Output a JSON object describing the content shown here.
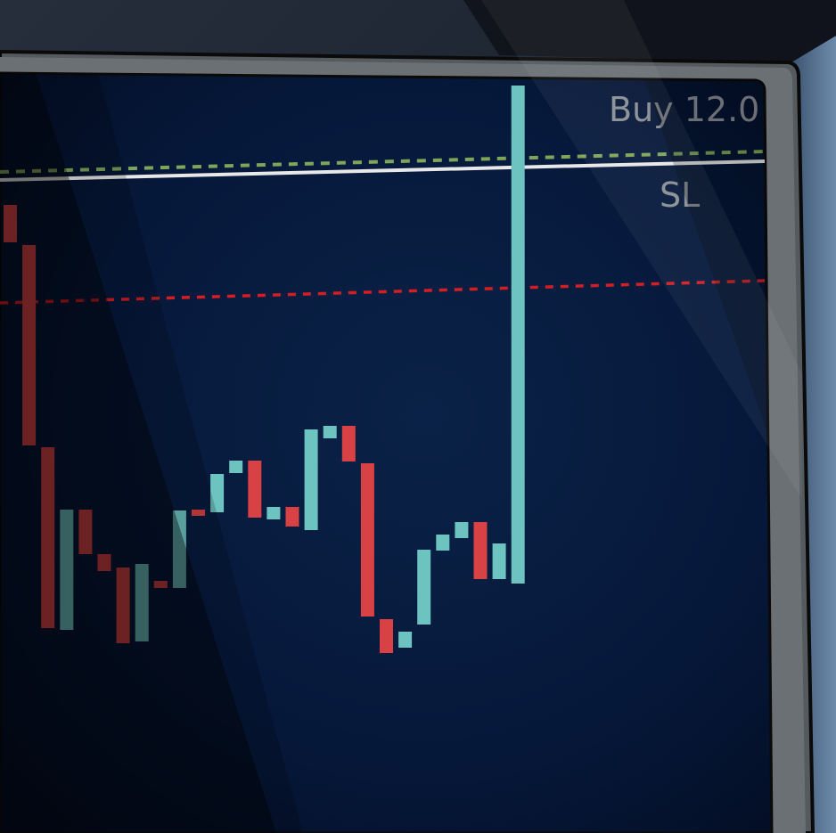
{
  "chart_data": {
    "type": "candlestick",
    "annotations": [
      {
        "text": "Buy 12.0",
        "kind": "entry-line",
        "color": "#7ea65a"
      },
      {
        "text": "SL",
        "kind": "stop-loss-line",
        "color": "#e8e8e8"
      }
    ],
    "colors": {
      "bullish": "#6cc3c0",
      "bearish": "#d94244",
      "screen_bg": "#06152e",
      "take_profit_line": "#d21f24",
      "buy_line": "#7ea65a",
      "sl_line": "#e8e8e8",
      "label": "#8a8f96"
    },
    "candles": [
      {
        "open": 230,
        "close": 272,
        "dir": "bear"
      },
      {
        "open": 275,
        "close": 500,
        "dir": "bear"
      },
      {
        "open": 502,
        "close": 705,
        "dir": "bear"
      },
      {
        "open": 707,
        "close": 572,
        "dir": "bull"
      },
      {
        "open": 572,
        "close": 622,
        "dir": "bear"
      },
      {
        "open": 622,
        "close": 641,
        "dir": "bear"
      },
      {
        "open": 637,
        "close": 722,
        "dir": "bear"
      },
      {
        "open": 720,
        "close": 633,
        "dir": "bull"
      },
      {
        "open": 652,
        "close": 660,
        "dir": "bear"
      },
      {
        "open": 660,
        "close": 573,
        "dir": "bull"
      },
      {
        "open": 572,
        "close": 579,
        "dir": "bear"
      },
      {
        "open": 575,
        "close": 532,
        "dir": "bull"
      },
      {
        "open": 531,
        "close": 517,
        "dir": "bull"
      },
      {
        "open": 517,
        "close": 581,
        "dir": "bear"
      },
      {
        "open": 583,
        "close": 569,
        "dir": "bull"
      },
      {
        "open": 569,
        "close": 591,
        "dir": "bear"
      },
      {
        "open": 595,
        "close": 482,
        "dir": "bull"
      },
      {
        "open": 492,
        "close": 478,
        "dir": "bull"
      },
      {
        "open": 478,
        "close": 518,
        "dir": "bear"
      },
      {
        "open": 520,
        "close": 692,
        "dir": "bear"
      },
      {
        "open": 695,
        "close": 733,
        "dir": "bear"
      },
      {
        "open": 727,
        "close": 709,
        "dir": "bull"
      },
      {
        "open": 701,
        "close": 617,
        "dir": "bull"
      },
      {
        "open": 618,
        "close": 600,
        "dir": "bull"
      },
      {
        "open": 604,
        "close": 586,
        "dir": "bull"
      },
      {
        "open": 586,
        "close": 650,
        "dir": "bear"
      },
      {
        "open": 650,
        "close": 610,
        "dir": "bull"
      },
      {
        "open": 655,
        "close": 96,
        "dir": "bull"
      }
    ]
  }
}
